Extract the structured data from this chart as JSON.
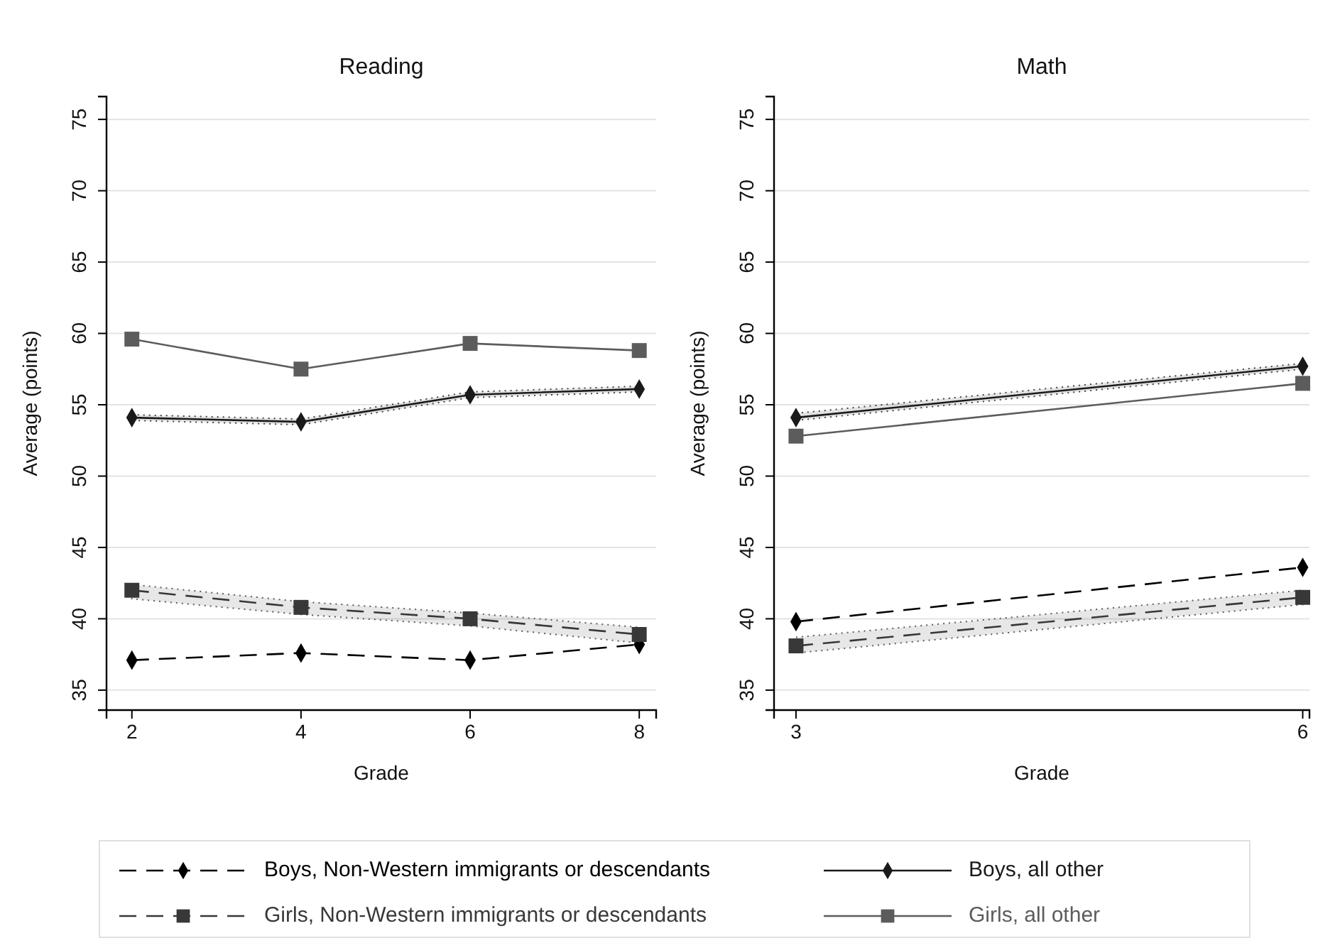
{
  "chart_data": [
    {
      "type": "line",
      "title": "Reading",
      "xlabel": "Grade",
      "ylabel": "Average (points)",
      "x": [
        2,
        4,
        6,
        8
      ],
      "xlim": [
        1.7,
        8.2
      ],
      "xticks": [
        2,
        4,
        6,
        8
      ],
      "ylim": [
        33.6,
        76.6
      ],
      "yticks": [
        35,
        40,
        45,
        50,
        55,
        60,
        65,
        70,
        75
      ],
      "grid": "y",
      "legend": "bottom",
      "series": [
        {
          "name": "Boys, Non-Western immigrants or descendants",
          "color": "#000000",
          "marker": "diamond",
          "line_style": "dashed",
          "values": [
            37.1,
            37.6,
            37.1,
            38.2
          ]
        },
        {
          "name": "Girls, Non-Western immigrants or descendants",
          "color": "#383838",
          "marker": "square",
          "line_style": "dashed",
          "values": [
            42.0,
            40.8,
            40.0,
            38.9
          ],
          "lower": [
            41.4,
            40.3,
            39.5,
            38.3
          ],
          "upper": [
            42.4,
            41.2,
            40.4,
            39.4
          ]
        },
        {
          "name": "Boys, all other",
          "color": "#1a1a1a",
          "marker": "diamond",
          "line_style": "solid",
          "values": [
            54.1,
            53.8,
            55.7,
            56.1
          ],
          "lower": [
            53.9,
            53.6,
            55.5,
            55.9
          ],
          "upper": [
            54.3,
            54.0,
            55.9,
            56.3
          ]
        },
        {
          "name": "Girls, all other",
          "color": "#5c5c5c",
          "marker": "square",
          "line_style": "solid",
          "values": [
            59.6,
            57.5,
            59.3,
            58.8
          ]
        }
      ]
    },
    {
      "type": "line",
      "title": "Math",
      "xlabel": "Grade",
      "ylabel": "Average (points)",
      "x": [
        3,
        6
      ],
      "xlim": [
        2.87,
        6.04
      ],
      "xticks": [
        3,
        6
      ],
      "ylim": [
        33.6,
        76.6
      ],
      "yticks": [
        35,
        40,
        45,
        50,
        55,
        60,
        65,
        70,
        75
      ],
      "grid": "y",
      "series": [
        {
          "color": "#000000",
          "marker": "diamond",
          "line_style": "dashed",
          "values": [
            39.8,
            43.6
          ]
        },
        {
          "color": "#383838",
          "marker": "square",
          "line_style": "dashed",
          "values": [
            38.1,
            41.5
          ],
          "lower": [
            37.6,
            41.0
          ],
          "upper": [
            38.7,
            42.0
          ]
        },
        {
          "color": "#1a1a1a",
          "marker": "diamond",
          "line_style": "solid",
          "values": [
            54.1,
            57.7
          ],
          "lower": [
            53.9,
            57.5
          ],
          "upper": [
            54.4,
            57.9
          ]
        },
        {
          "color": "#5c5c5c",
          "marker": "square",
          "line_style": "solid",
          "values": [
            52.8,
            56.5
          ]
        }
      ]
    }
  ]
}
